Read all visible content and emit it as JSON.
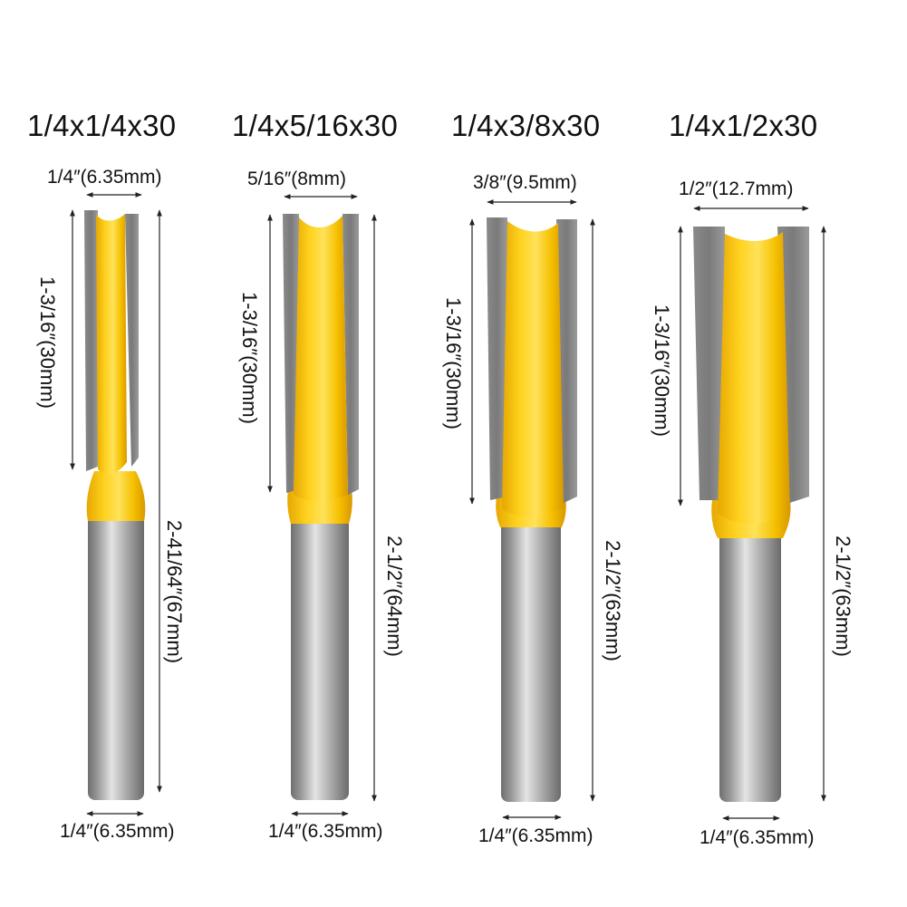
{
  "bits": [
    {
      "title": "1/4x1/4x30",
      "cut_diameter": "1/4″(6.35mm)",
      "cut_length": "1-3/16″(30mm)",
      "overall_length": "2-41/64″(67mm)",
      "shank_diameter": "1/4″(6.35mm)"
    },
    {
      "title": "1/4x5/16x30",
      "cut_diameter": "5/16″(8mm)",
      "cut_length": "1-3/16″(30mm)",
      "overall_length": "2-1/2″(64mm)",
      "shank_diameter": "1/4″(6.35mm)"
    },
    {
      "title": "1/4x3/8x30",
      "cut_diameter": "3/8″(9.5mm)",
      "cut_length": "1-3/16″(30mm)",
      "overall_length": "2-1/2″(63mm)",
      "shank_diameter": "1/4″(6.35mm)"
    },
    {
      "title": "1/4x1/2x30",
      "cut_diameter": "1/2″(12.7mm)",
      "cut_length": "1-3/16″(30mm)",
      "overall_length": "2-1/2″(63mm)",
      "shank_diameter": "1/4″(6.35mm)"
    }
  ],
  "colors": {
    "body_yellow": "#f7c514",
    "yellow_highlight": "#ffe066",
    "steel_gray": "#8e8e8e",
    "steel_dark": "#5c5c5c",
    "steel_light": "#d6d6d6",
    "text": "#111111"
  }
}
